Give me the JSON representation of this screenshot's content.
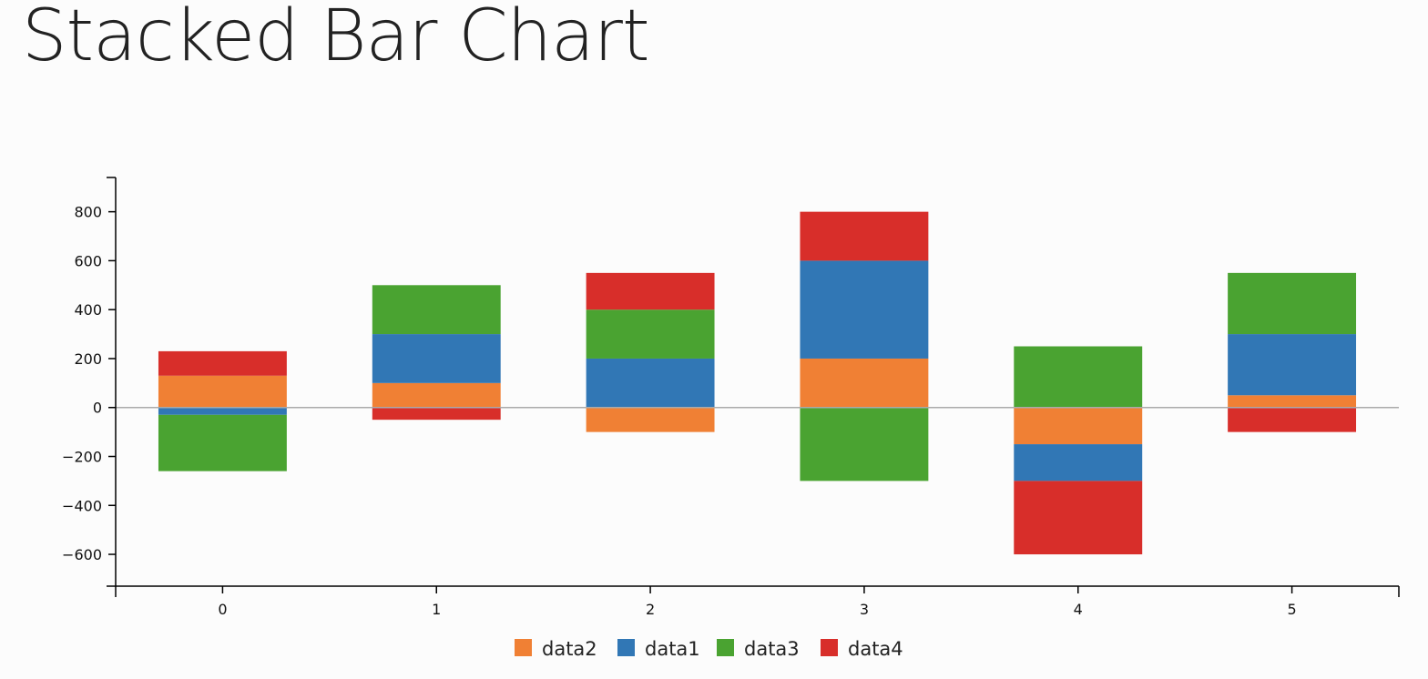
{
  "page": {
    "title": "Stacked Bar Chart"
  },
  "chart_data": {
    "type": "bar",
    "stacked": true,
    "title": "Stacked Bar Chart",
    "xlabel": "",
    "ylabel": "",
    "categories": [
      "0",
      "1",
      "2",
      "3",
      "4",
      "5"
    ],
    "ylim": [
      -730,
      940
    ],
    "yticks": [
      800,
      600,
      400,
      200,
      0,
      -200,
      -400,
      -600
    ],
    "ytick_labels": [
      "800",
      "600",
      "400",
      "200",
      "0",
      "−200",
      "−400",
      "−600"
    ],
    "stack_order": [
      "data2",
      "data1",
      "data3",
      "data4"
    ],
    "series": [
      {
        "name": "data1",
        "color": "#3177b5",
        "values": [
          -30,
          200,
          200,
          400,
          -150,
          250
        ]
      },
      {
        "name": "data2",
        "color": "#f08034",
        "values": [
          130,
          100,
          -100,
          200,
          -150,
          50
        ]
      },
      {
        "name": "data3",
        "color": "#4aa331",
        "values": [
          -230,
          200,
          200,
          -300,
          250,
          250
        ]
      },
      {
        "name": "data4",
        "color": "#d82e2a",
        "values": [
          100,
          -50,
          150,
          200,
          -300,
          -100
        ]
      }
    ],
    "legend": {
      "position": "bottom",
      "items": [
        {
          "name": "data2",
          "color": "#f08034"
        },
        {
          "name": "data1",
          "color": "#3177b5"
        },
        {
          "name": "data3",
          "color": "#4aa331"
        },
        {
          "name": "data4",
          "color": "#d82e2a"
        }
      ]
    },
    "zero_line": true,
    "grid": false
  }
}
